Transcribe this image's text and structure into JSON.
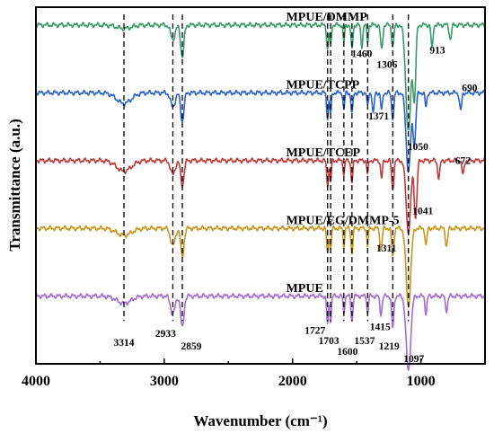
{
  "chart_data": {
    "type": "line",
    "title": "",
    "xlabel": "Wavenumber (cm⁻¹)",
    "ylabel": "Transmittance (a.u.)",
    "xlim": [
      4000,
      500
    ],
    "x_reversed": true,
    "x_ticks": [
      4000,
      3000,
      2000,
      1000
    ],
    "y_ticks": [],
    "grid": false,
    "legend": "none",
    "series": [
      {
        "name": "MPUE/DMMP",
        "color": "#3a9a6a",
        "baseline": 0.95,
        "label_at": 1700,
        "peaks": [
          [
            3314,
            0.01,
            80
          ],
          [
            2933,
            0.04,
            25
          ],
          [
            2859,
            0.09,
            18
          ],
          [
            1727,
            0.07,
            10
          ],
          [
            1703,
            0.06,
            8
          ],
          [
            1600,
            0.05,
            8
          ],
          [
            1537,
            0.07,
            10
          ],
          [
            1460,
            0.06,
            10
          ],
          [
            1415,
            0.05,
            8
          ],
          [
            1306,
            0.07,
            12
          ],
          [
            1219,
            0.06,
            12
          ],
          [
            1097,
            0.3,
            28
          ],
          [
            1050,
            0.2,
            15
          ],
          [
            913,
            0.07,
            10
          ],
          [
            770,
            0.04,
            12
          ]
        ]
      },
      {
        "name": "MPUE/TCPP",
        "color": "#2a62c8",
        "baseline": 0.76,
        "label_at": 1700,
        "peaks": [
          [
            3314,
            0.03,
            80
          ],
          [
            2933,
            0.04,
            25
          ],
          [
            2859,
            0.08,
            18
          ],
          [
            1727,
            0.07,
            10
          ],
          [
            1703,
            0.06,
            8
          ],
          [
            1600,
            0.05,
            8
          ],
          [
            1537,
            0.06,
            10
          ],
          [
            1415,
            0.04,
            8
          ],
          [
            1371,
            0.06,
            10
          ],
          [
            1306,
            0.05,
            10
          ],
          [
            1219,
            0.07,
            12
          ],
          [
            1097,
            0.22,
            25
          ],
          [
            1050,
            0.14,
            15
          ],
          [
            960,
            0.04,
            10
          ],
          [
            690,
            0.05,
            12
          ]
        ]
      },
      {
        "name": "MPUE/TCEP",
        "color": "#c23a3a",
        "baseline": 0.57,
        "label_at": 1700,
        "peaks": [
          [
            3314,
            0.03,
            80
          ],
          [
            2933,
            0.04,
            25
          ],
          [
            2859,
            0.07,
            18
          ],
          [
            1727,
            0.07,
            10
          ],
          [
            1703,
            0.06,
            8
          ],
          [
            1600,
            0.04,
            8
          ],
          [
            1537,
            0.06,
            10
          ],
          [
            1415,
            0.04,
            8
          ],
          [
            1306,
            0.05,
            10
          ],
          [
            1219,
            0.08,
            12
          ],
          [
            1097,
            0.2,
            25
          ],
          [
            1041,
            0.16,
            15
          ],
          [
            860,
            0.05,
            12
          ],
          [
            672,
            0.04,
            12
          ]
        ]
      },
      {
        "name": "MPUE/EG/DMMP-5",
        "color": "#c8961a",
        "baseline": 0.38,
        "label_at": 1700,
        "peaks": [
          [
            3314,
            0.02,
            80
          ],
          [
            2933,
            0.05,
            25
          ],
          [
            2859,
            0.08,
            18
          ],
          [
            1727,
            0.07,
            10
          ],
          [
            1703,
            0.06,
            8
          ],
          [
            1600,
            0.05,
            8
          ],
          [
            1537,
            0.07,
            10
          ],
          [
            1415,
            0.05,
            8
          ],
          [
            1311,
            0.06,
            12
          ],
          [
            1219,
            0.08,
            12
          ],
          [
            1097,
            0.22,
            25
          ],
          [
            960,
            0.05,
            10
          ],
          [
            800,
            0.05,
            12
          ]
        ]
      },
      {
        "name": "MPUE",
        "color": "#a46cd4",
        "baseline": 0.19,
        "label_at": 1700,
        "peaks": [
          [
            3314,
            0.02,
            80
          ],
          [
            2933,
            0.05,
            25
          ],
          [
            2859,
            0.09,
            18
          ],
          [
            1727,
            0.08,
            10
          ],
          [
            1703,
            0.07,
            8
          ],
          [
            1600,
            0.05,
            8
          ],
          [
            1537,
            0.07,
            10
          ],
          [
            1415,
            0.05,
            8
          ],
          [
            1311,
            0.05,
            12
          ],
          [
            1219,
            0.09,
            12
          ],
          [
            1097,
            0.21,
            25
          ],
          [
            960,
            0.05,
            10
          ],
          [
            800,
            0.04,
            12
          ]
        ]
      }
    ],
    "dashed_markers": [
      3314,
      2933,
      2859,
      1727,
      1703,
      1600,
      1537,
      1415,
      1219,
      1097
    ],
    "annotations": [
      {
        "text": "3314",
        "x": 3314
      },
      {
        "text": "2933",
        "x": 2933
      },
      {
        "text": "2859",
        "x": 2859
      },
      {
        "text": "1727",
        "x": 1727
      },
      {
        "text": "1703",
        "x": 1703
      },
      {
        "text": "1600",
        "x": 1600
      },
      {
        "text": "1537",
        "x": 1537
      },
      {
        "text": "1415",
        "x": 1415
      },
      {
        "text": "1219",
        "x": 1219
      },
      {
        "text": "1097",
        "x": 1097
      },
      {
        "text": "1311",
        "x": 1311
      },
      {
        "text": "1041",
        "x": 1041
      },
      {
        "text": "672",
        "x": 672
      },
      {
        "text": "1371",
        "x": 1371
      },
      {
        "text": "1050",
        "x": 1050
      },
      {
        "text": "690",
        "x": 690
      },
      {
        "text": "1460",
        "x": 1460
      },
      {
        "text": "1306",
        "x": 1306
      },
      {
        "text": "913",
        "x": 913
      }
    ]
  }
}
